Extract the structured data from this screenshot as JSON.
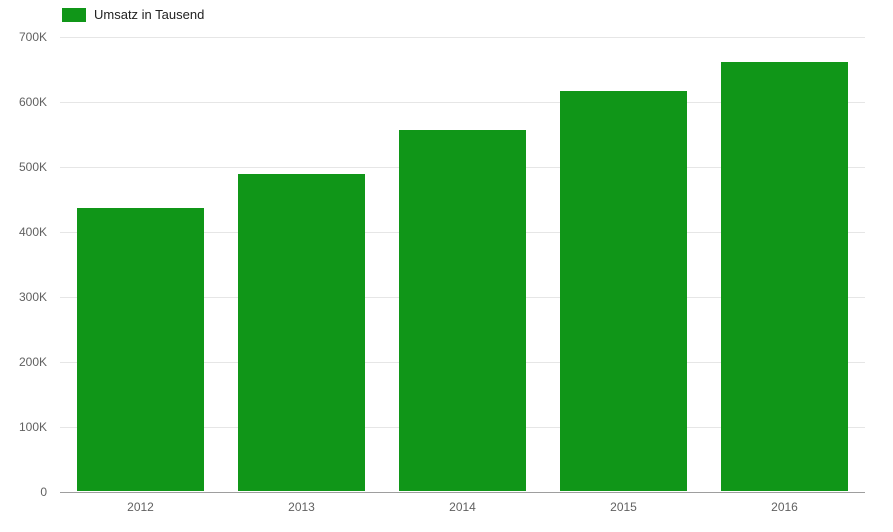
{
  "chart_data": {
    "type": "bar",
    "title": "",
    "xlabel": "",
    "ylabel": "",
    "legend": "Umsatz in Tausend",
    "legend_position": "top-left",
    "categories": [
      "2012",
      "2013",
      "2014",
      "2015",
      "2016"
    ],
    "values": [
      435000,
      487000,
      556000,
      616000,
      660000
    ],
    "ylim": [
      0,
      700000
    ],
    "ytick_interval": 100000,
    "yticks": [
      "0",
      "100K",
      "200K",
      "300K",
      "400K",
      "500K",
      "600K",
      "700K"
    ],
    "grid": true,
    "colors": {
      "bar": "#109618",
      "gridline": "#e6e6e6",
      "baseline": "#9e9e9e",
      "tick_text": "#616161",
      "legend_text": "#222222",
      "background": "#ffffff"
    }
  }
}
